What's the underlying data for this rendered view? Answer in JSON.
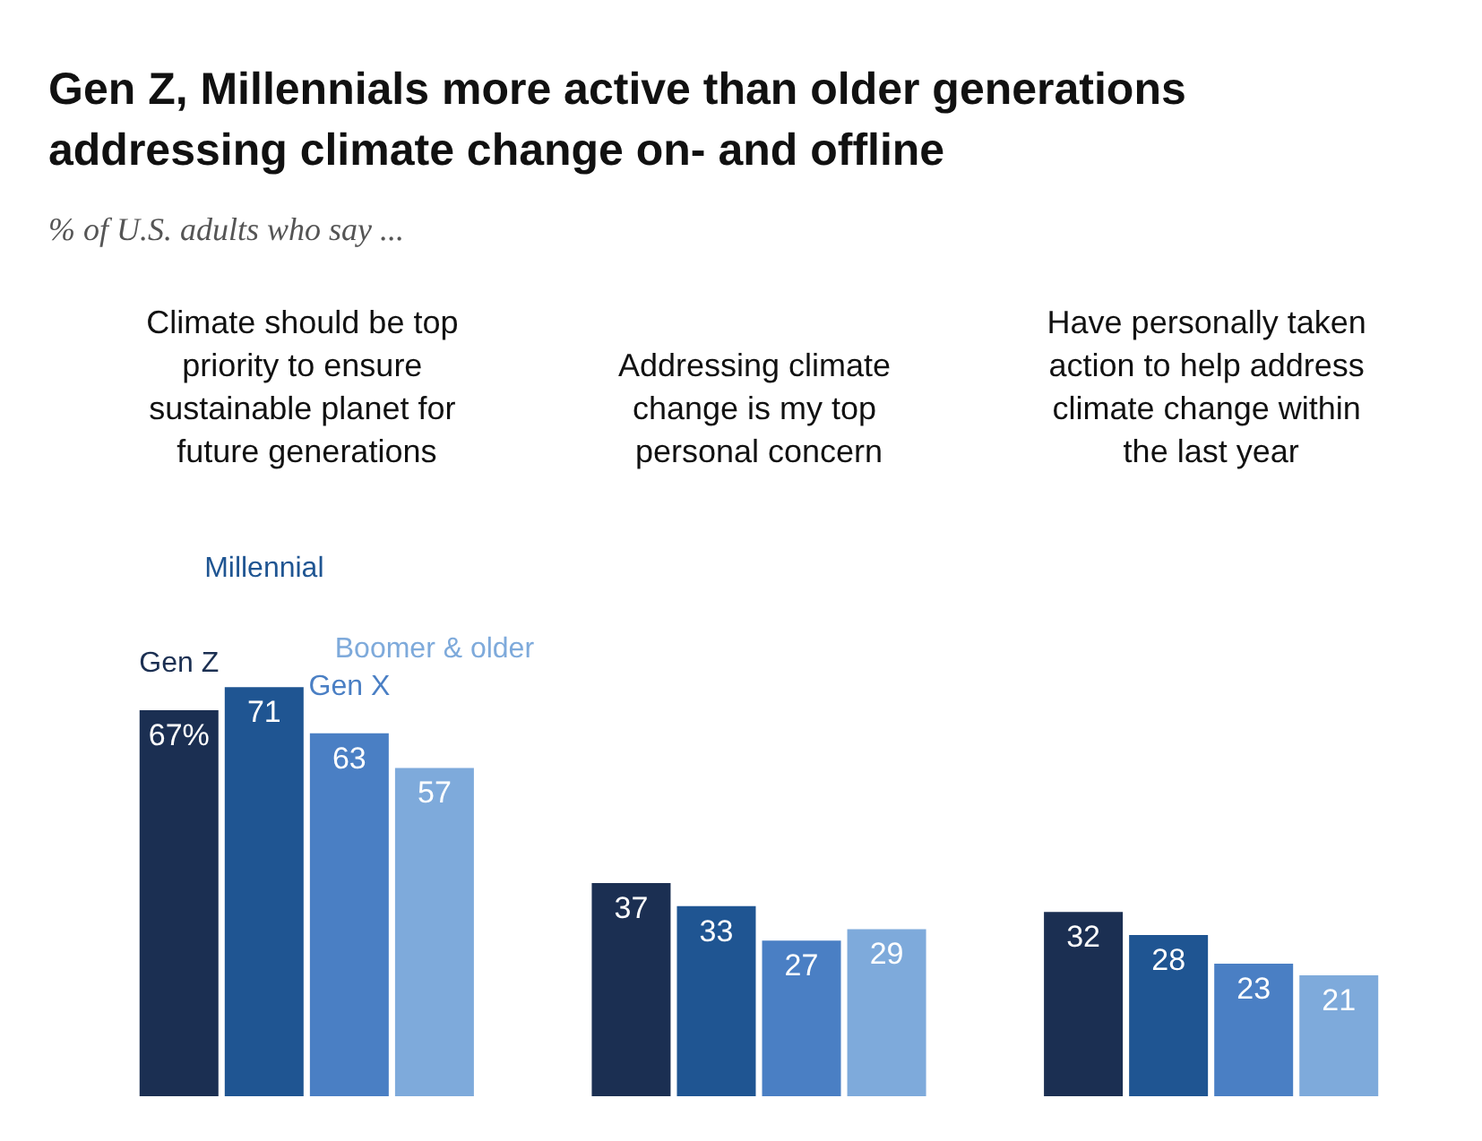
{
  "chart_data": {
    "type": "bar",
    "title": "Gen Z, Millennials more active than older generations addressing climate change on- and offline",
    "subtitle": "% of U.S. adults who say ...",
    "categories": [
      "Climate should be top priority to ensure sustainable planet for future generations",
      "Addressing climate change is my top personal concern",
      "Have personally taken action to help address climate change within the last year"
    ],
    "data_labels": true,
    "legend": false,
    "grid": false,
    "series": [
      {
        "name": "Gen Z",
        "color": "#1b2f52",
        "values": [
          67,
          37,
          32
        ],
        "value_labels": [
          "67%",
          "37",
          "32"
        ]
      },
      {
        "name": "Millennial",
        "color": "#1f5592",
        "values": [
          71,
          33,
          28
        ]
      },
      {
        "name": "Gen X",
        "color": "#4a7fc4",
        "values": [
          63,
          27,
          23
        ]
      },
      {
        "name": "Boomer & older",
        "color": "#7eaadb",
        "values": [
          57,
          29,
          21
        ]
      }
    ]
  }
}
